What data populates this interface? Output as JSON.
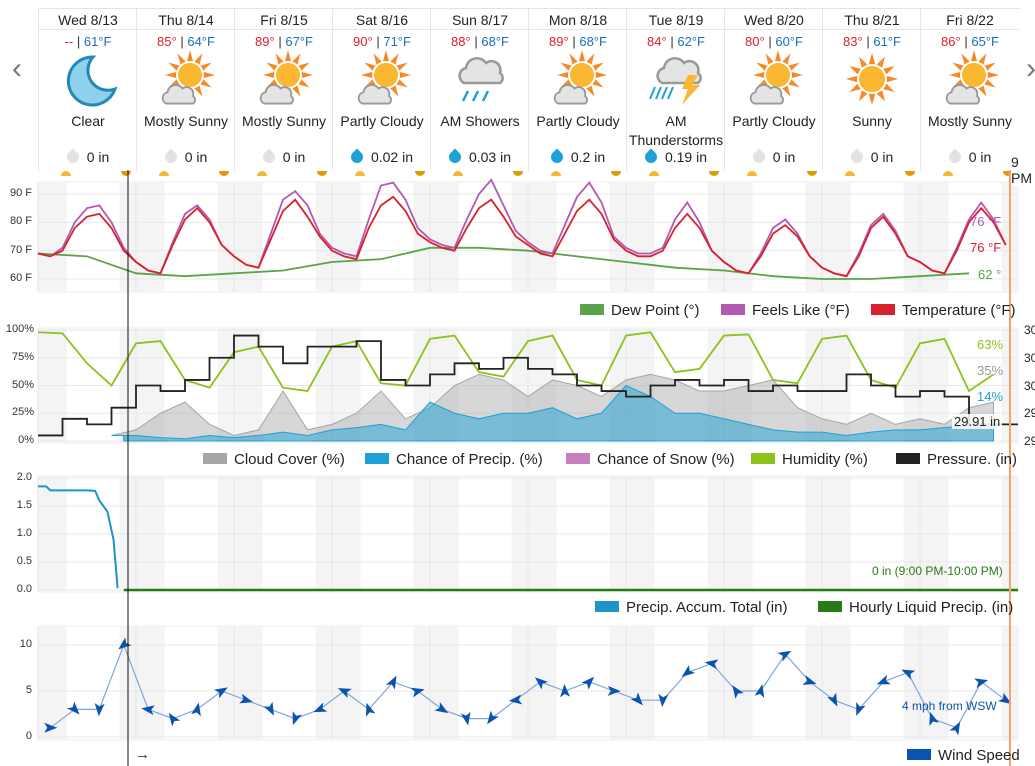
{
  "nav": {
    "prev_icon": "chevron-left-icon",
    "next_icon": "chevron-right-icon"
  },
  "forecast": [
    {
      "date": "Wed 8/13",
      "high": "--",
      "low": "61°F",
      "icon": "moon",
      "condition": "Clear",
      "precip": "0 in",
      "precip_active": false
    },
    {
      "date": "Thu 8/14",
      "high": "85°",
      "low": "64°F",
      "icon": "sun-cloud",
      "condition": "Mostly Sunny",
      "precip": "0 in",
      "precip_active": false
    },
    {
      "date": "Fri 8/15",
      "high": "89°",
      "low": "67°F",
      "icon": "sun-cloud",
      "condition": "Mostly Sunny",
      "precip": "0 in",
      "precip_active": false
    },
    {
      "date": "Sat 8/16",
      "high": "90°",
      "low": "71°F",
      "icon": "sun-cloud",
      "condition": "Partly Cloudy",
      "precip": "0.02 in",
      "precip_active": true
    },
    {
      "date": "Sun 8/17",
      "high": "88°",
      "low": "68°F",
      "icon": "rain",
      "condition": "AM Showers",
      "precip": "0.03 in",
      "precip_active": true
    },
    {
      "date": "Mon 8/18",
      "high": "89°",
      "low": "68°F",
      "icon": "sun-cloud",
      "condition": "Partly Cloudy",
      "precip": "0.2 in",
      "precip_active": true
    },
    {
      "date": "Tue 8/19",
      "high": "84°",
      "low": "62°F",
      "icon": "thunder",
      "condition": "AM Thunderstorms",
      "precip": "0.19 in",
      "precip_active": true
    },
    {
      "date": "Wed 8/20",
      "high": "80°",
      "low": "60°F",
      "icon": "sun-cloud",
      "condition": "Partly Cloudy",
      "precip": "0 in",
      "precip_active": false
    },
    {
      "date": "Thu 8/21",
      "high": "83°",
      "low": "61°F",
      "icon": "sun",
      "condition": "Sunny",
      "precip": "0 in",
      "precip_active": false
    },
    {
      "date": "Fri 8/22",
      "high": "86°",
      "low": "65°F",
      "icon": "sun-cloud",
      "condition": "Mostly Sunny",
      "precip": "0 in",
      "precip_active": false
    }
  ],
  "hover_time": "9 PM",
  "now_arrow": "→",
  "colors": {
    "temperature": "#d9212d",
    "feels_like": "#b15ab0",
    "dew_point": "#5aa34a",
    "cloud": "#a6a6a6",
    "precip_chance": "#1ea1d6",
    "snow": "#c77fc0",
    "humidity": "#8cc21a",
    "pressure": "#222222",
    "accum": "#1d93c6",
    "hourly": "#287a16",
    "wind": "#0a54b0",
    "hover_line": "#f5a36a"
  },
  "chart_data": [
    {
      "type": "line",
      "title": "",
      "ylabel": "",
      "ylim": [
        56,
        95
      ],
      "y_ticks": [
        "90 F",
        "80 F",
        "70 F",
        "60 F"
      ],
      "x_step_hours": 3,
      "series": [
        {
          "name": "Temperature (°F)",
          "values": [
            69,
            68,
            70,
            78,
            82,
            83,
            78,
            70,
            66,
            63,
            62,
            72,
            81,
            85,
            80,
            72,
            68,
            65,
            64,
            74,
            84,
            88,
            82,
            75,
            70,
            68,
            67,
            78,
            86,
            89,
            84,
            76,
            73,
            71,
            70,
            78,
            85,
            88,
            82,
            75,
            72,
            69,
            68,
            76,
            84,
            88,
            83,
            74,
            70,
            68,
            68,
            70,
            78,
            83,
            78,
            70,
            66,
            63,
            62,
            68,
            76,
            79,
            75,
            68,
            64,
            62,
            61,
            68,
            78,
            82,
            76,
            68,
            66,
            63,
            62,
            70,
            80,
            85,
            80,
            72
          ],
          "readout": "76 °F"
        },
        {
          "name": "Feels Like (°F)",
          "values": [
            69,
            68,
            71,
            80,
            85,
            86,
            80,
            71,
            66,
            63,
            62,
            73,
            83,
            86,
            81,
            72,
            68,
            65,
            64,
            76,
            88,
            91,
            86,
            76,
            71,
            69,
            68,
            81,
            93,
            94,
            88,
            78,
            74,
            72,
            71,
            81,
            90,
            95,
            86,
            77,
            73,
            70,
            69,
            79,
            89,
            94,
            87,
            75,
            71,
            69,
            69,
            71,
            81,
            87,
            80,
            70,
            66,
            63,
            62,
            69,
            78,
            81,
            76,
            68,
            64,
            62,
            61,
            69,
            79,
            83,
            77,
            68,
            66,
            63,
            62,
            71,
            81,
            87,
            81,
            72
          ],
          "readout": "76 °F"
        },
        {
          "name": "Dew Point (°)",
          "x_step_hours": 12,
          "values": [
            69,
            68,
            62,
            61,
            62,
            63,
            66,
            67,
            71,
            71,
            70,
            68,
            66,
            64,
            63,
            61,
            60,
            60,
            61,
            62
          ],
          "readout": "62 °"
        }
      ],
      "legend": [
        "Dew Point (°)",
        "Feels Like (°F)",
        "Temperature (°F)"
      ]
    },
    {
      "type": "area",
      "ylim": [
        0,
        100
      ],
      "y_ticks": [
        "100%",
        "75%",
        "50%",
        "25%",
        "0%"
      ],
      "right_ticks": [
        "30",
        "30",
        "30",
        "29",
        "29"
      ],
      "x_step_hours": 6,
      "series": [
        {
          "name": "Cloud Cover (%)",
          "values": [
            null,
            null,
            null,
            5,
            10,
            25,
            35,
            15,
            5,
            10,
            45,
            10,
            15,
            25,
            45,
            20,
            30,
            50,
            60,
            55,
            40,
            55,
            50,
            40,
            55,
            60,
            55,
            45,
            45,
            50,
            55,
            30,
            20,
            15,
            25,
            15,
            20,
            15,
            30,
            35
          ],
          "readout": "35%"
        },
        {
          "name": "Chance of Precip. (%)",
          "values": [
            null,
            null,
            null,
            5,
            5,
            3,
            2,
            5,
            3,
            5,
            8,
            5,
            10,
            12,
            15,
            10,
            35,
            25,
            20,
            25,
            25,
            30,
            20,
            25,
            50,
            40,
            25,
            25,
            20,
            15,
            10,
            8,
            8,
            5,
            8,
            10,
            10,
            12,
            14,
            14
          ],
          "readout": "14%"
        },
        {
          "name": "Chance of Snow (%)",
          "values": []
        },
        {
          "name": "Humidity (%)",
          "values": [
            98,
            97,
            70,
            50,
            88,
            90,
            55,
            48,
            80,
            85,
            48,
            45,
            85,
            90,
            52,
            50,
            92,
            95,
            62,
            58,
            90,
            95,
            55,
            50,
            95,
            98,
            62,
            65,
            95,
            96,
            55,
            52,
            92,
            95,
            55,
            48,
            88,
            92,
            45,
            60
          ],
          "readout": "63%"
        },
        {
          "name": "Pressure. (in)",
          "ylim": [
            29.88,
            30.08
          ],
          "values": [
            29.89,
            29.92,
            29.91,
            29.94,
            29.98,
            29.97,
            29.99,
            30.03,
            30.07,
            30.05,
            30.02,
            30.05,
            30.05,
            30.06,
            29.99,
            29.98,
            30.0,
            30.02,
            30.01,
            30.03,
            30.01,
            30.0,
            29.98,
            29.97,
            29.96,
            29.98,
            29.99,
            29.98,
            29.99,
            29.97,
            29.98,
            29.97,
            29.97,
            30.0,
            29.98,
            29.96,
            29.97,
            29.96,
            29.91,
            29.91
          ],
          "readout": "29.91 in"
        }
      ]
    },
    {
      "type": "line",
      "ylim": [
        0,
        2
      ],
      "y_ticks": [
        "2.0",
        "1.5",
        "1.0",
        "0.5",
        "0.0"
      ],
      "series": [
        {
          "name": "Precip. Accum. Total (in)",
          "hours": [
            0,
            2,
            3,
            12,
            14,
            15,
            17,
            18.5,
            19.5
          ],
          "values": [
            1.85,
            1.85,
            1.78,
            1.78,
            1.77,
            1.6,
            1.4,
            0.9,
            0.03
          ]
        },
        {
          "name": "Hourly Liquid Precip. (in)",
          "hours": [
            21,
            240
          ],
          "values": [
            0,
            0
          ],
          "readout": "0 in (9:00 PM-10:00 PM)"
        }
      ]
    },
    {
      "type": "line",
      "ylim": [
        0,
        12
      ],
      "y_ticks": [
        "10",
        "5",
        "0"
      ],
      "x_step_hours": 6,
      "series": [
        {
          "name": "Wind Speed",
          "values": [
            1,
            3,
            3,
            10,
            3,
            2,
            3,
            5,
            4,
            3,
            2,
            3,
            5,
            3,
            6,
            5,
            3,
            2,
            2,
            4,
            6,
            5,
            6,
            5,
            4,
            4,
            7,
            8,
            5,
            5,
            9,
            6,
            4,
            3,
            6,
            7,
            2,
            1,
            6,
            4
          ],
          "readout": "4 mph from WSW"
        }
      ]
    }
  ]
}
